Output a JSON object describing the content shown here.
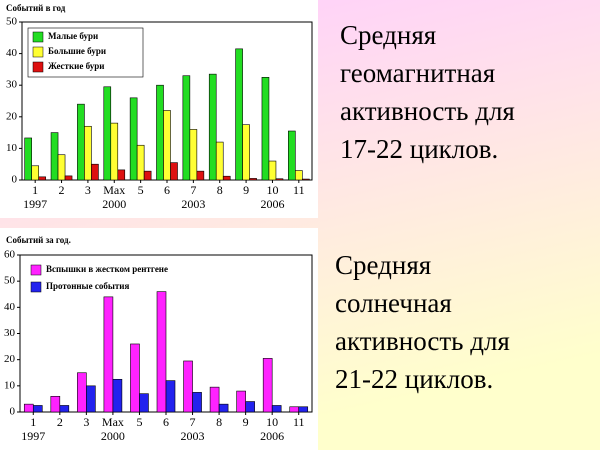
{
  "chart_data": [
    {
      "type": "bar",
      "title": "Событий в год",
      "categories": [
        "1",
        "2",
        "3",
        "Max",
        "5",
        "6",
        "7",
        "8",
        "9",
        "10",
        "11"
      ],
      "x_sublabels": [
        "1997",
        null,
        null,
        "2000",
        null,
        null,
        "2003",
        null,
        null,
        "2006",
        null
      ],
      "series": [
        {
          "name": "Малые бури",
          "color": "#22dd22",
          "values": [
            13.3,
            15,
            24,
            29.5,
            26,
            30,
            33,
            33.5,
            41.5,
            32.5,
            15.5
          ]
        },
        {
          "name": "Большие бури",
          "color": "#ffff33",
          "values": [
            4.5,
            8,
            17,
            18,
            11,
            22,
            16,
            12,
            17.5,
            6,
            3
          ]
        },
        {
          "name": "Жесткие бури",
          "color": "#dd1111",
          "values": [
            1,
            1.3,
            5,
            3.2,
            2.8,
            5.5,
            2.8,
            1.2,
            0.5,
            0.4,
            0.3
          ]
        }
      ],
      "ylim": [
        0,
        50
      ],
      "yticks": [
        0,
        10,
        20,
        30,
        40,
        50
      ],
      "legend": "upper left",
      "grid": false
    },
    {
      "type": "bar",
      "title": "Событий за год.",
      "categories": [
        "1",
        "2",
        "3",
        "Max",
        "5",
        "6",
        "7",
        "8",
        "9",
        "10",
        "11"
      ],
      "x_sublabels": [
        "1997",
        null,
        null,
        "2000",
        null,
        null,
        "2003",
        null,
        null,
        "2006",
        null
      ],
      "series": [
        {
          "name": "Вспышки в жестком рентгене",
          "color": "#ff22ff",
          "values": [
            3,
            6,
            15,
            44,
            26,
            46,
            19.5,
            9.5,
            8,
            20.5,
            2
          ]
        },
        {
          "name": "Протонные события",
          "color": "#2222ee",
          "values": [
            2.5,
            2.5,
            10,
            12.5,
            7,
            12,
            7.5,
            3,
            4,
            2.5,
            2
          ]
        }
      ],
      "ylim": [
        0,
        60
      ],
      "yticks": [
        0,
        10,
        20,
        30,
        40,
        50,
        60
      ],
      "legend": "upper left",
      "grid": false
    }
  ],
  "slide_text": [
    {
      "lines": [
        "Средняя",
        "геомагнитная",
        "активность для",
        "17-22 циклов."
      ]
    },
    {
      "lines": [
        "Средняя",
        "солнечная",
        "активность для",
        "21-22 циклов."
      ]
    }
  ]
}
